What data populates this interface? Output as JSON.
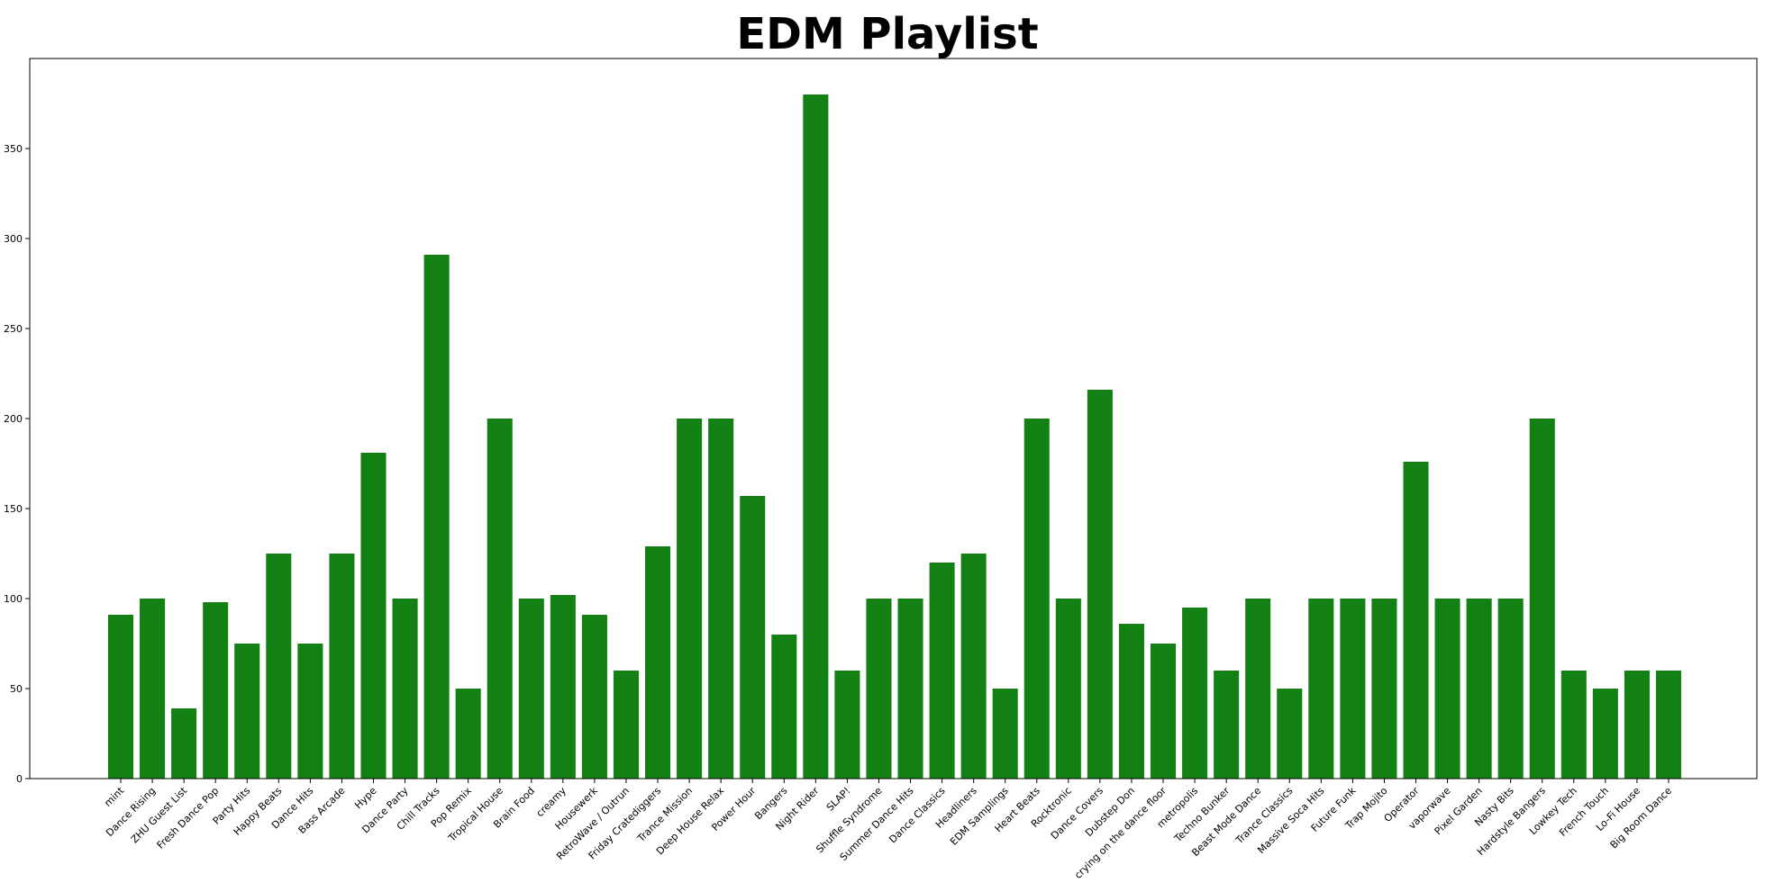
{
  "chart_data": {
    "type": "bar",
    "title": "EDM Playlist",
    "xlabel": "",
    "ylabel": "",
    "ylim": [
      0,
      400
    ],
    "yticks": [
      0,
      50,
      100,
      150,
      200,
      250,
      300,
      350
    ],
    "grid": false,
    "bar_color": "#138013",
    "categories": [
      "mint",
      "Dance Rising",
      "ZHU Guest List",
      "Fresh Dance Pop",
      "Party Hits",
      "Happy Beats",
      "Dance Hits",
      "Bass Arcade",
      "Hype",
      "Dance Party",
      "Chill Tracks",
      "Pop Remix",
      "Tropical House",
      "Brain Food",
      "creamy",
      "Housewerk",
      "RetroWave / Outrun",
      "Friday Cratediggers",
      "Trance Mission",
      "Deep House Relax",
      "Power Hour",
      "Bangers",
      "Night Rider",
      "SLAP!",
      "Shuffle Syndrome",
      "Summer Dance Hits",
      "Dance Classics",
      "Headliners",
      "EDM Samplings",
      "Heart Beats",
      "Rocktronic",
      "Dance Covers",
      "Dubstep Don",
      "crying on the dance floor",
      "metropolis",
      "Techno Bunker",
      "Beast Mode Dance",
      "Trance Classics",
      "Massive Soca Hits",
      "Future Funk",
      "Trap Mojito",
      "Operator",
      "vaporwave",
      "Pixel Garden",
      "Nasty Bits",
      "Hardstyle Bangers",
      "Lowkey Tech",
      "French Touch",
      "Lo-Fi House",
      "Big Room Dance"
    ],
    "values": [
      91,
      100,
      39,
      98,
      75,
      125,
      75,
      125,
      181,
      100,
      291,
      50,
      200,
      100,
      102,
      91,
      60,
      129,
      200,
      200,
      157,
      80,
      380,
      60,
      100,
      100,
      120,
      125,
      50,
      200,
      100,
      216,
      86,
      75,
      95,
      60,
      100,
      50,
      100,
      100,
      100,
      176,
      100,
      100,
      100,
      200,
      60,
      50,
      60,
      60
    ]
  }
}
